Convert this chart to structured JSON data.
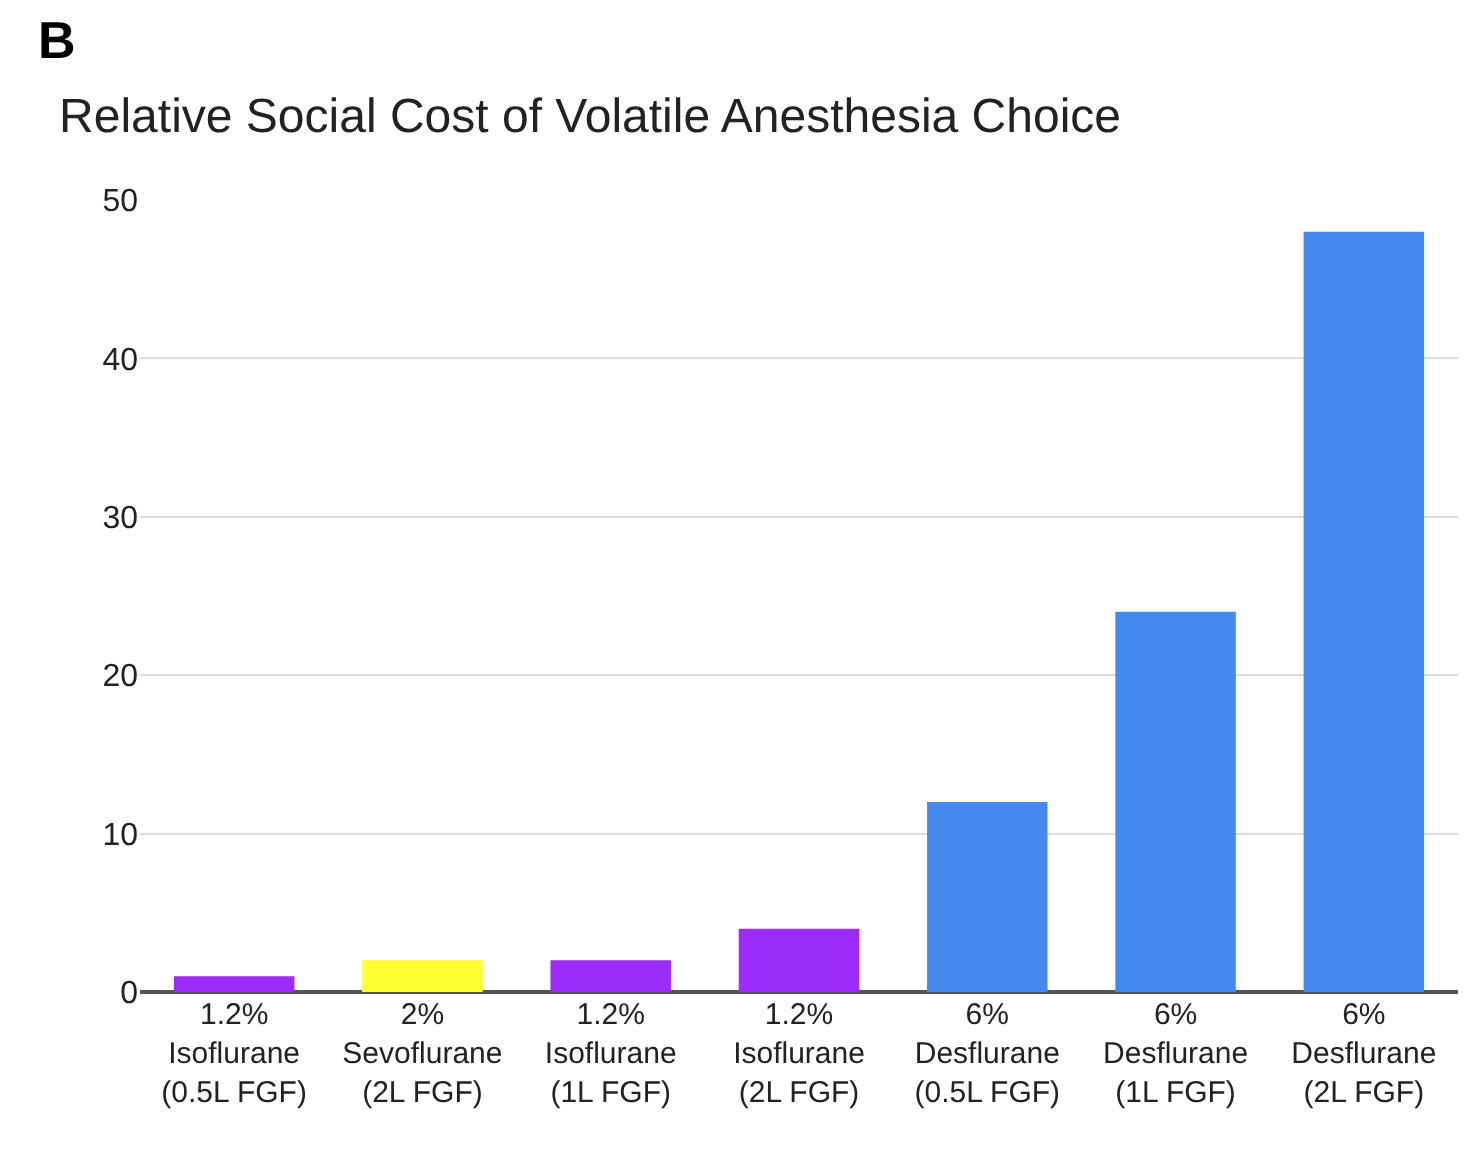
{
  "chart_data": {
    "type": "bar",
    "title": "Relative Social Cost of Volatile Anesthesia Choice",
    "annotations": [
      "B"
    ],
    "categories": [
      "1.2% Isoflurane (0.5L FGF)",
      "2% Sevoflurane (2L FGF)",
      "1.2% Isoflurane (1L FGF)",
      "1.2% Isoflurane (2L FGF)",
      "6% Desflurane (0.5L FGF)",
      "6% Desflurane (1L FGF)",
      "6% Desflurane (2L FGF)"
    ],
    "values": [
      1,
      2,
      2,
      4,
      12,
      24,
      48
    ],
    "colors": [
      "#9b2cfa",
      "#ffff33",
      "#9b2cfa",
      "#9b2cfa",
      "#4689ee",
      "#4689ee",
      "#4689ee"
    ],
    "ylim": [
      0,
      50
    ],
    "yticks": [
      0,
      10,
      20,
      30,
      40,
      50
    ],
    "grid": "y"
  }
}
